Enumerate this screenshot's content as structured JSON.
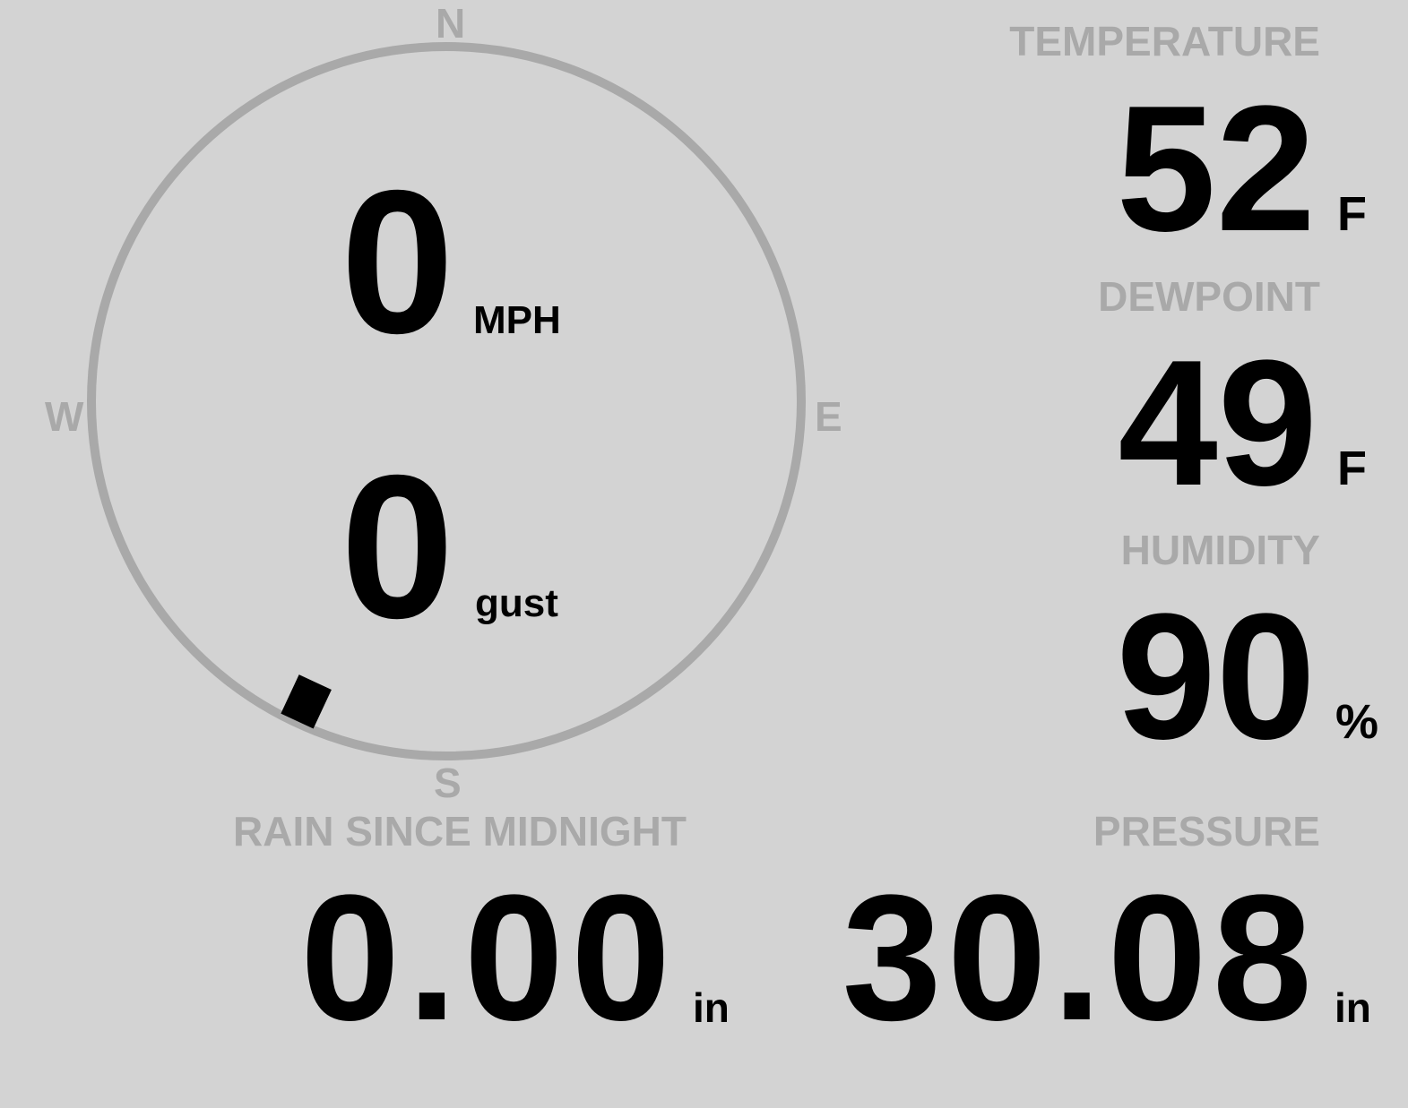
{
  "colors": {
    "background": "#d3d3d3",
    "label": "#a9a9a9",
    "value": "#000000",
    "compass_ring": "#a9a9a9"
  },
  "wind": {
    "speed": "0",
    "speed_unit": "MPH",
    "gust": "0",
    "gust_unit": "gust",
    "direction_degrees": 205,
    "compass": {
      "n": "N",
      "e": "E",
      "s": "S",
      "w": "W"
    }
  },
  "temperature": {
    "label": "TEMPERATURE",
    "value": "52",
    "unit": "F"
  },
  "dewpoint": {
    "label": "DEWPOINT",
    "value": "49",
    "unit": "F"
  },
  "humidity": {
    "label": "HUMIDITY",
    "value": "90",
    "unit": "%"
  },
  "rain": {
    "label": "RAIN SINCE MIDNIGHT",
    "value": "0.00",
    "unit": "in"
  },
  "pressure": {
    "label": "PRESSURE",
    "value": "30.08",
    "unit": "in"
  }
}
